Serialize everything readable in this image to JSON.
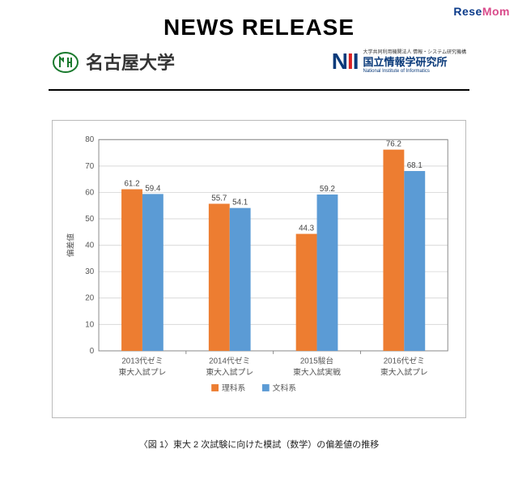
{
  "watermark": {
    "text": "ReseMom",
    "color_left": "#0b3b8a",
    "color_right": "#d94b8b"
  },
  "header": {
    "title": "NEWS RELEASE",
    "nagoya": {
      "text": "名古屋大学",
      "mark_color": "#1a7a2e"
    },
    "nii": {
      "mark": "NII",
      "sup": "大学共同利用機関法人  情報・システム研究機構",
      "name": "国立情報学研究所",
      "en": "National Institute of Informatics",
      "blue": "#0a3a7a",
      "red": "#cc2222"
    }
  },
  "chart": {
    "type": "bar",
    "ylim_min": 0,
    "ylim_max": 80,
    "ytick_step": 10,
    "ylabel": "偏差値",
    "categories": [
      {
        "line1": "2013代ゼミ",
        "line2": "東大入試プレ"
      },
      {
        "line1": "2014代ゼミ",
        "line2": "東大入試プレ"
      },
      {
        "line1": "2015駿台",
        "line2": "東大入試実戦"
      },
      {
        "line1": "2016代ゼミ",
        "line2": "東大入試プレ"
      }
    ],
    "series": [
      {
        "name": "理科系",
        "color": "#ed7d31",
        "values": [
          61.2,
          55.7,
          44.3,
          76.2
        ]
      },
      {
        "name": "文科系",
        "color": "#5b9bd5",
        "values": [
          59.4,
          54.1,
          59.2,
          68.1
        ]
      }
    ],
    "background_color": "#ffffff",
    "grid_color": "#d9d9d9",
    "axis_color": "#888888",
    "label_fontsize": 10,
    "value_fontsize": 10,
    "bar_gap": 0
  },
  "caption": "〈図 1〉東大 2 次試験に向けた模試（数学）の偏差値の推移"
}
